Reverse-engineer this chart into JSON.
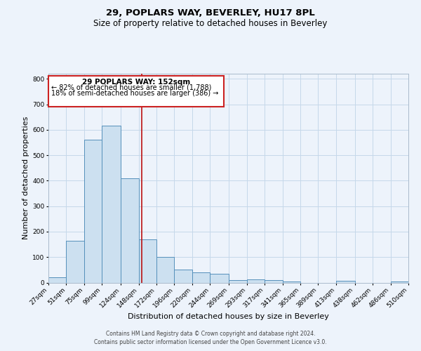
{
  "title": "29, POPLARS WAY, BEVERLEY, HU17 8PL",
  "subtitle": "Size of property relative to detached houses in Beverley",
  "xlabel": "Distribution of detached houses by size in Beverley",
  "ylabel": "Number of detached properties",
  "bar_bins": [
    27,
    51,
    75,
    99,
    124,
    148,
    172,
    196,
    220,
    244,
    269,
    293,
    317,
    341,
    365,
    389,
    413,
    438,
    462,
    486,
    510
  ],
  "bar_heights": [
    20,
    165,
    560,
    615,
    410,
    170,
    100,
    50,
    40,
    35,
    10,
    12,
    10,
    5,
    0,
    0,
    8,
    0,
    0,
    5
  ],
  "bar_color": "#cce0f0",
  "bar_edgecolor": "#5590bb",
  "vline_x": 152,
  "vline_color": "#bb1111",
  "ylim": [
    0,
    820
  ],
  "yticks": [
    0,
    100,
    200,
    300,
    400,
    500,
    600,
    700,
    800
  ],
  "grid_color": "#c5d8ea",
  "bg_color": "#edf3fb",
  "annotation_title": "29 POPLARS WAY: 152sqm",
  "annotation_line1": "← 82% of detached houses are smaller (1,788)",
  "annotation_line2": "18% of semi-detached houses are larger (386) →",
  "annotation_box_edgecolor": "#cc2222",
  "footer1": "Contains HM Land Registry data © Crown copyright and database right 2024.",
  "footer2": "Contains public sector information licensed under the Open Government Licence v3.0.",
  "title_fontsize": 9.5,
  "subtitle_fontsize": 8.5,
  "xlabel_fontsize": 8,
  "ylabel_fontsize": 8,
  "tick_fontsize": 6.5,
  "annot_title_fontsize": 7.5,
  "annot_text_fontsize": 7,
  "footer_fontsize": 5.5
}
